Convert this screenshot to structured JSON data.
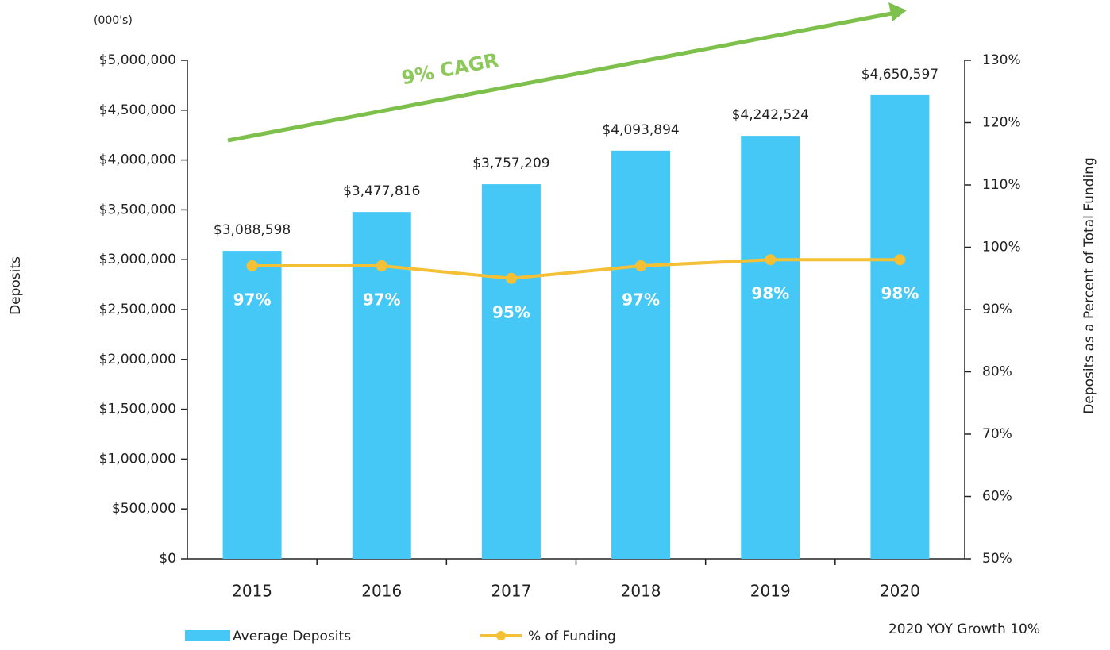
{
  "chart_data": {
    "type": "bar",
    "unit_note": "(000's)",
    "annotation": "9% CAGR",
    "footnote": "2020 YOY Growth 10%",
    "y_label": "Deposits",
    "y2_label": "Deposits as a Percent of Total Funding",
    "categories": [
      "2015",
      "2016",
      "2017",
      "2018",
      "2019",
      "2020"
    ],
    "series": [
      {
        "name": "Average Deposits",
        "type": "bar",
        "color": "#45c8f5",
        "values": [
          3088598,
          3477816,
          3757209,
          4093894,
          4242524,
          4650597
        ],
        "value_labels": [
          "$3,088,598",
          "$3,477,816",
          "$3,757,209",
          "$4,093,894",
          "$4,242,524",
          "$4,650,597"
        ]
      },
      {
        "name": "% of Funding",
        "type": "line",
        "axis": "y2",
        "color": "#f4c136",
        "values": [
          97,
          97,
          95,
          97,
          98,
          98
        ],
        "value_labels": [
          "97%",
          "97%",
          "95%",
          "97%",
          "98%",
          "98%"
        ]
      }
    ],
    "ylim": [
      0,
      5000000
    ],
    "yticks": [
      {
        "value": 0,
        "label": "$0"
      },
      {
        "value": 500000,
        "label": "$500,000"
      },
      {
        "value": 1000000,
        "label": "$1,000,000"
      },
      {
        "value": 1500000,
        "label": "$1,500,000"
      },
      {
        "value": 2000000,
        "label": "$2,000,000"
      },
      {
        "value": 2500000,
        "label": "$2,500,000"
      },
      {
        "value": 3000000,
        "label": "$3,000,000"
      },
      {
        "value": 3500000,
        "label": "$3,500,000"
      },
      {
        "value": 4000000,
        "label": "$4,000,000"
      },
      {
        "value": 4500000,
        "label": "$4,500,000"
      },
      {
        "value": 5000000,
        "label": "$5,000,000"
      }
    ],
    "y2lim": [
      50,
      130
    ],
    "y2ticks": [
      {
        "value": 50,
        "label": "50%"
      },
      {
        "value": 60,
        "label": "60%"
      },
      {
        "value": 70,
        "label": "70%"
      },
      {
        "value": 80,
        "label": "80%"
      },
      {
        "value": 90,
        "label": "90%"
      },
      {
        "value": 100,
        "label": "100%"
      },
      {
        "value": 110,
        "label": "110%"
      },
      {
        "value": 120,
        "label": "120%"
      },
      {
        "value": 130,
        "label": "130%"
      }
    ],
    "grid": false
  }
}
